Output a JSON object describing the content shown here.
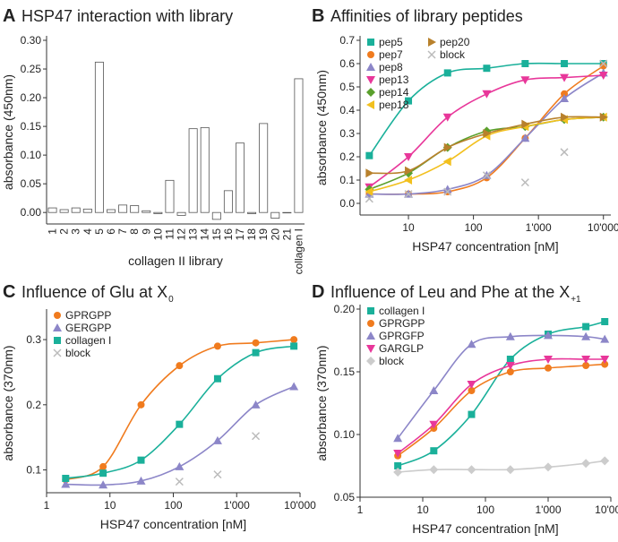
{
  "chart_data": [
    {
      "panel": "A",
      "type": "bar",
      "title": "HSP47 interaction with library",
      "x_label": "collagen II library",
      "y_label": "absorbance (450nm)",
      "categories": [
        "1",
        "2",
        "3",
        "4",
        "5",
        "6",
        "7",
        "8",
        "9",
        "10",
        "11",
        "12",
        "13",
        "14",
        "15",
        "16",
        "17",
        "18",
        "19",
        "20",
        "21",
        "collagen I"
      ],
      "values": [
        0.008,
        0.005,
        0.008,
        0.006,
        0.262,
        0.005,
        0.013,
        0.012,
        0.003,
        -0.002,
        0.056,
        -0.005,
        0.146,
        0.148,
        -0.012,
        0.038,
        0.121,
        -0.002,
        0.155,
        -0.01,
        0.0,
        0.233
      ],
      "color": "#ffffff",
      "edge_color": "#555555",
      "ylim": [
        -0.02,
        0.3
      ],
      "yticks": [
        {
          "value": 0,
          "label": "0.00"
        },
        {
          "value": 0.05,
          "label": "0.05"
        },
        {
          "value": 0.1,
          "label": "0.10"
        },
        {
          "value": 0.15,
          "label": "0.15"
        },
        {
          "value": 0.2,
          "label": "0.20"
        },
        {
          "value": 0.25,
          "label": "0.25"
        },
        {
          "value": 0.3,
          "label": "0.30"
        }
      ]
    },
    {
      "panel": "B",
      "type": "scatter",
      "title": "Affinities of library peptides",
      "x_label": "HSP47 concentration [nM]",
      "y_label": "absorbance (450nm)",
      "xscale": "log",
      "legend": "upper left",
      "x": [
        2.5,
        10,
        40,
        160,
        625,
        2500,
        10000
      ],
      "xlim": [
        1.8,
        13000
      ],
      "xticks": [
        10,
        100,
        {
          "value": 1000,
          "label": "1'000"
        },
        {
          "value": 10000,
          "label": "10'000"
        }
      ],
      "ylim": [
        -0.05,
        0.7
      ],
      "yticks": [
        {
          "value": 0,
          "label": "0.0"
        },
        0.1,
        0.2,
        0.3,
        0.4,
        0.5,
        0.6,
        0.7
      ],
      "series": [
        {
          "name": "pep5",
          "color": "#1ab09a",
          "marker": "square",
          "line": true,
          "values": [
            0.205,
            0.44,
            0.56,
            0.58,
            0.6,
            0.6,
            0.6
          ]
        },
        {
          "name": "pep7",
          "color": "#f07b1e",
          "marker": "circle",
          "line": true,
          "values": [
            0.04,
            0.04,
            0.05,
            0.11,
            0.28,
            0.47,
            0.59
          ]
        },
        {
          "name": "pep8",
          "color": "#8c86c8",
          "marker": "triangle",
          "line": true,
          "values": [
            0.04,
            0.04,
            0.06,
            0.12,
            0.28,
            0.45,
            0.56
          ]
        },
        {
          "name": "pep13",
          "color": "#e8379a",
          "marker": "down",
          "line": true,
          "values": [
            0.07,
            0.2,
            0.37,
            0.47,
            0.53,
            0.54,
            0.55
          ]
        },
        {
          "name": "pep14",
          "color": "#5aa02c",
          "marker": "diamond",
          "line": true,
          "values": [
            0.06,
            0.13,
            0.24,
            0.31,
            0.33,
            0.36,
            0.37
          ]
        },
        {
          "name": "pep18",
          "color": "#f2c01e",
          "marker": "left",
          "line": true,
          "values": [
            0.05,
            0.1,
            0.18,
            0.29,
            0.33,
            0.36,
            0.37
          ]
        },
        {
          "name": "pep20",
          "color": "#b8812c",
          "marker": "right",
          "line": true,
          "values": [
            0.13,
            0.14,
            0.24,
            0.3,
            0.34,
            0.37,
            0.37
          ]
        },
        {
          "name": "block",
          "color": "#bbbbbb",
          "marker": "x",
          "line": false,
          "values": [
            0.02,
            0.04,
            0.05,
            0.12,
            0.09,
            0.22,
            0.6
          ]
        }
      ]
    },
    {
      "panel": "C",
      "type": "scatter",
      "title": "Influence of Glu at X",
      "title_sub": "0",
      "x_label": "HSP47 concentration [nM]",
      "y_label": "absorbance (370nm)",
      "xscale": "log",
      "legend": "upper left",
      "x": [
        2,
        7.8,
        31,
        125,
        500,
        2000,
        8000
      ],
      "xlim": [
        1,
        10000
      ],
      "xticks": [
        1,
        10,
        100,
        {
          "value": 1000,
          "label": "1'000"
        },
        {
          "value": 10000,
          "label": "10'000"
        }
      ],
      "ylim": [
        0.065,
        0.34
      ],
      "yticks": [
        0.1,
        0.2,
        0.3
      ],
      "series": [
        {
          "name": "GPRGPP",
          "color": "#f07b1e",
          "marker": "circle",
          "line": true,
          "values": [
            0.085,
            0.105,
            0.2,
            0.26,
            0.29,
            0.295,
            0.3
          ]
        },
        {
          "name": "GERGPP",
          "color": "#8c86c8",
          "marker": "triangle",
          "line": true,
          "values": [
            0.078,
            0.077,
            0.083,
            0.105,
            0.145,
            0.2,
            0.228
          ]
        },
        {
          "name": "collagen I",
          "color": "#1ab09a",
          "marker": "square",
          "line": true,
          "values": [
            0.087,
            0.095,
            0.115,
            0.17,
            0.24,
            0.28,
            0.29
          ]
        },
        {
          "name": "block",
          "color": "#bbbbbb",
          "marker": "x",
          "line": false,
          "values": [
            null,
            null,
            null,
            0.082,
            0.093,
            0.152,
            null
          ]
        }
      ]
    },
    {
      "panel": "D",
      "type": "scatter",
      "title": "Influence of Leu and Phe at the X",
      "title_sub": "+1",
      "x_label": "HSP47 concentration [nM]",
      "y_label": "absorbance (370nm)",
      "xscale": "log",
      "legend": "upper left",
      "x": [
        4,
        15,
        60,
        250,
        1000,
        4000,
        8000
      ],
      "xlim": [
        1,
        10000
      ],
      "xticks": [
        1,
        10,
        100,
        {
          "value": 1000,
          "label": "1'000"
        },
        {
          "value": 10000,
          "label": "10'000"
        }
      ],
      "ylim": [
        0.05,
        0.2
      ],
      "yticks": [
        0.05,
        {
          "value": 0.1,
          "label": "0.10"
        },
        0.15,
        {
          "value": 0.2,
          "label": "0.20"
        }
      ],
      "series": [
        {
          "name": "collagen I",
          "color": "#1ab09a",
          "marker": "square",
          "line": true,
          "values": [
            0.075,
            0.087,
            0.116,
            0.16,
            0.18,
            0.186,
            0.19
          ]
        },
        {
          "name": "GPRGPP",
          "color": "#f07b1e",
          "marker": "circle",
          "line": true,
          "values": [
            0.083,
            0.105,
            0.135,
            0.15,
            0.153,
            0.155,
            0.156
          ]
        },
        {
          "name": "GPRGFP",
          "color": "#8c86c8",
          "marker": "triangle",
          "line": true,
          "values": [
            0.097,
            0.135,
            0.172,
            0.178,
            0.179,
            0.178,
            0.176
          ]
        },
        {
          "name": "GARGLP",
          "color": "#e8379a",
          "marker": "down",
          "line": true,
          "values": [
            0.085,
            0.108,
            0.14,
            0.155,
            0.16,
            0.16,
            0.16
          ]
        },
        {
          "name": "block",
          "color": "#cccccc",
          "marker": "diamond",
          "line": true,
          "values": [
            0.07,
            0.072,
            0.072,
            0.072,
            0.074,
            0.077,
            0.079
          ]
        }
      ]
    }
  ]
}
